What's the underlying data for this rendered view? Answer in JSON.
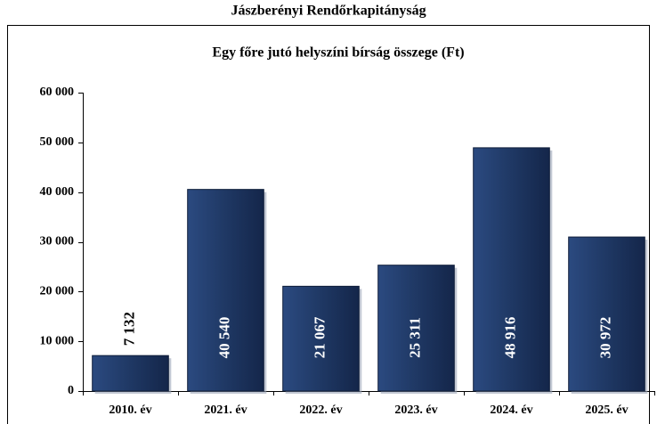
{
  "header": {
    "title": "Jászberényi Rendőrkapitányság"
  },
  "chart_data": {
    "type": "bar",
    "title": "Egy főre jutó helyszíni bírság összege (Ft)",
    "categories": [
      "2010. év",
      "2021. év",
      "2022. év",
      "2023. év",
      "2024. év",
      "2025. év"
    ],
    "values": [
      7132,
      40540,
      21067,
      25311,
      48916,
      30972
    ],
    "value_labels": [
      "7 132",
      "40 540",
      "21 067",
      "25 311",
      "48 916",
      "30 972"
    ],
    "color": "#1f3864",
    "ylim": [
      0,
      60000
    ],
    "yticks": [
      0,
      {
        "value": 10000,
        "label": "10 000"
      },
      {
        "value": 20000,
        "label": "20 000"
      },
      {
        "value": 30000,
        "label": "30 000"
      },
      {
        "value": 40000,
        "label": "40 000"
      },
      {
        "value": 50000,
        "label": "50 000"
      },
      {
        "value": 60000,
        "label": "60 000"
      }
    ],
    "grid": false
  }
}
